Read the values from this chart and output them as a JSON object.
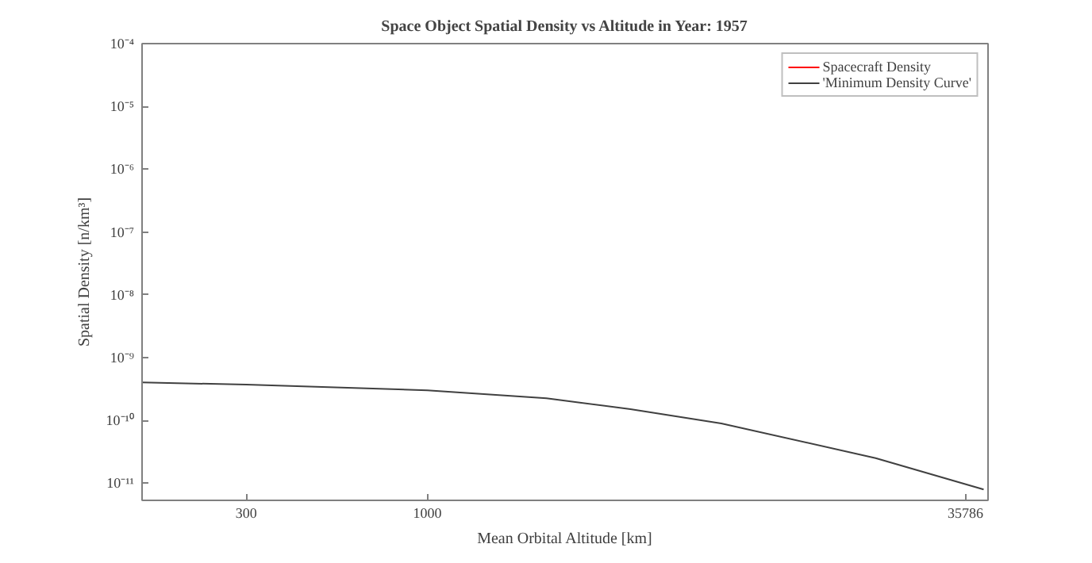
{
  "chart_data": {
    "type": "line",
    "title": "Space Object Spatial Density vs Altitude in Year: 1957",
    "xlabel": "Mean Orbital Altitude [km]",
    "ylabel": "Spatial Density [n/km³]",
    "log": "xy",
    "xlim": [
      150,
      41600
    ],
    "ylim": [
      5.3e-12,
      0.0001
    ],
    "xticks": [
      300,
      1000,
      35786
    ],
    "yticks": [
      {
        "value": 0.0001,
        "label": "10⁻⁴"
      },
      {
        "value": 1e-05,
        "label": "10⁻⁵"
      },
      {
        "value": 1e-06,
        "label": "10⁻⁶"
      },
      {
        "value": 1e-07,
        "label": "10⁻⁷"
      },
      {
        "value": 1e-08,
        "label": "10⁻⁸"
      },
      {
        "value": 1e-09,
        "label": "10⁻⁹"
      },
      {
        "value": 1e-10,
        "label": "10⁻¹⁰"
      },
      {
        "value": 1e-11,
        "label": "10⁻¹¹"
      }
    ],
    "grid": false,
    "legend": "top right",
    "marker": "none",
    "line_style": "solid",
    "series": [
      {
        "name": "Spacecraft Density",
        "color": "#ff0000"
      },
      {
        "name": "'Minimum Density Curve'",
        "color": "#404040",
        "x": [
          150,
          300,
          1000,
          2207,
          3860,
          7060,
          19700,
          40400
        ],
        "values": [
          4e-10,
          3.7e-10,
          3e-10,
          2.24e-10,
          1.5e-10,
          8.9e-11,
          2.5e-11,
          7.9e-12
        ]
      }
    ]
  }
}
